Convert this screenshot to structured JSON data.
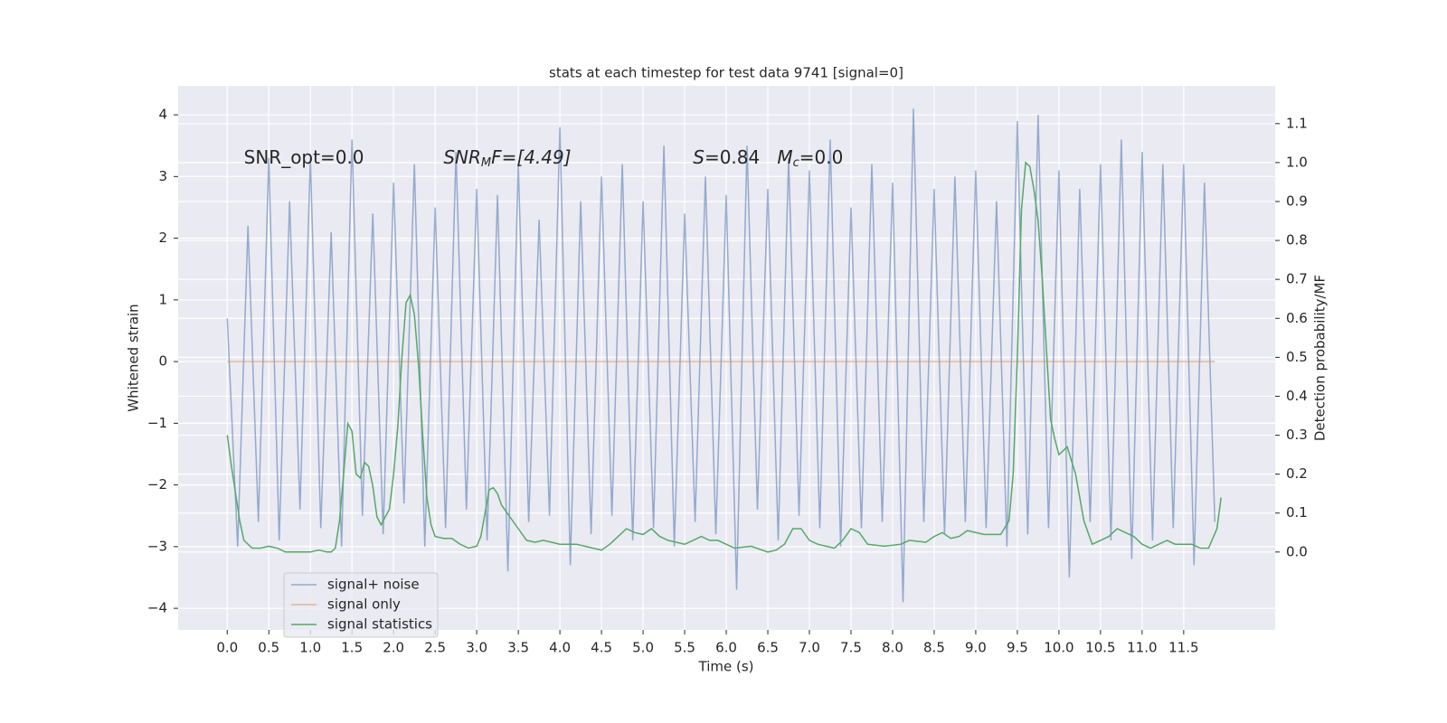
{
  "chart_data": {
    "type": "line",
    "title": "stats at each timestep for test data 9741 [signal=0]",
    "xlabel": "Time (s)",
    "ylabel": "Whitened strain",
    "y2label": "Detection probability/MF",
    "annotations": [
      {
        "x": 0.2,
        "y": 3.3,
        "parts": [
          "SNR_opt=0.0"
        ]
      },
      {
        "x": 2.6,
        "y": 3.3,
        "parts": [
          "SNR",
          "M",
          "F=[4.49]"
        ]
      },
      {
        "x": 5.6,
        "y": 3.3,
        "parts": [
          "S",
          "=0.84   ",
          "M",
          "c",
          "=0.0"
        ]
      }
    ],
    "xlim": [
      -0.59,
      12.6
    ],
    "ylim": [
      -4.35,
      4.47
    ],
    "y2lim": [
      -0.2,
      1.197
    ],
    "xticks": [
      {
        "value": 0,
        "label": "0.0"
      },
      {
        "value": 0.5,
        "label": "0.5"
      },
      {
        "value": 1,
        "label": "1.0"
      },
      {
        "value": 1.5,
        "label": "1.5"
      },
      {
        "value": 2,
        "label": "2.0"
      },
      {
        "value": 2.5,
        "label": "2.5"
      },
      {
        "value": 3,
        "label": "3.0"
      },
      {
        "value": 3.5,
        "label": "3.5"
      },
      {
        "value": 4,
        "label": "4.0"
      },
      {
        "value": 4.5,
        "label": "4.5"
      },
      {
        "value": 5,
        "label": "5.0"
      },
      {
        "value": 5.5,
        "label": "5.5"
      },
      {
        "value": 6,
        "label": "6.0"
      },
      {
        "value": 6.5,
        "label": "6.5"
      },
      {
        "value": 7,
        "label": "7.0"
      },
      {
        "value": 7.5,
        "label": "7.5"
      },
      {
        "value": 8,
        "label": "8.0"
      },
      {
        "value": 8.5,
        "label": "8.5"
      },
      {
        "value": 9,
        "label": "9.0"
      },
      {
        "value": 9.5,
        "label": "9.5"
      },
      {
        "value": 10,
        "label": "10.0"
      },
      {
        "value": 10.5,
        "label": "10.5"
      },
      {
        "value": 11,
        "label": "11.0"
      },
      {
        "value": 11.5,
        "label": "11.5"
      }
    ],
    "yticks": [
      {
        "value": -4,
        "label": "−4"
      },
      {
        "value": -3,
        "label": "−3"
      },
      {
        "value": -2,
        "label": "−2"
      },
      {
        "value": -1,
        "label": "−1"
      },
      0,
      1,
      2,
      3,
      4
    ],
    "y2ticks": [
      {
        "value": 0,
        "label": "0.0"
      },
      {
        "value": 0.1,
        "label": "0.1"
      },
      {
        "value": 0.2,
        "label": "0.2"
      },
      {
        "value": 0.3,
        "label": "0.3"
      },
      {
        "value": 0.4,
        "label": "0.4"
      },
      {
        "value": 0.5,
        "label": "0.5"
      },
      {
        "value": 0.6,
        "label": "0.6"
      },
      {
        "value": 0.7,
        "label": "0.7"
      },
      {
        "value": 0.8,
        "label": "0.8"
      },
      {
        "value": 0.9,
        "label": "0.9"
      },
      {
        "value": 1,
        "label": "1.0"
      },
      {
        "value": 1.1,
        "label": "1.1"
      }
    ],
    "grid": true,
    "legend": "lower left",
    "x": [
      0,
      0.125,
      0.25,
      0.375,
      0.5,
      0.625,
      0.75,
      0.875,
      1,
      1.125,
      1.25,
      1.375,
      1.5,
      1.625,
      1.75,
      1.875,
      2,
      2.125,
      2.25,
      2.375,
      2.5,
      2.625,
      2.75,
      2.875,
      3,
      3.125,
      3.25,
      3.375,
      3.5,
      3.625,
      3.75,
      3.875,
      4,
      4.125,
      4.25,
      4.375,
      4.5,
      4.625,
      4.75,
      4.875,
      5,
      5.125,
      5.25,
      5.375,
      5.5,
      5.625,
      5.75,
      5.875,
      6,
      6.125,
      6.25,
      6.375,
      6.5,
      6.625,
      6.75,
      6.875,
      7,
      7.125,
      7.25,
      7.375,
      7.5,
      7.625,
      7.75,
      7.875,
      8,
      8.125,
      8.25,
      8.375,
      8.5,
      8.625,
      8.75,
      8.875,
      9,
      9.125,
      9.25,
      9.375,
      9.5,
      9.625,
      9.75,
      9.875,
      10,
      10.125,
      10.25,
      10.375,
      10.5,
      10.625,
      10.75,
      10.875,
      11,
      11.125,
      11.25,
      11.375,
      11.5,
      11.625,
      11.75,
      11.875
    ],
    "series": [
      {
        "name": "signal+ noise",
        "color": "#4c72b0",
        "values": [
          0.7,
          -3.0,
          2.2,
          -2.6,
          3.3,
          -2.9,
          2.6,
          -2.4,
          3.3,
          -2.7,
          2.1,
          -3.0,
          3.6,
          -2.5,
          2.4,
          -2.8,
          2.9,
          -2.3,
          3.2,
          -3.0,
          2.5,
          -2.7,
          3.4,
          -2.4,
          2.8,
          -2.9,
          2.7,
          -3.4,
          3.2,
          -2.6,
          2.3,
          -2.5,
          3.8,
          -3.3,
          2.6,
          -2.8,
          3.0,
          -2.5,
          3.2,
          -2.9,
          2.6,
          -2.7,
          3.5,
          -3.0,
          2.4,
          -2.6,
          3.0,
          -2.8,
          2.7,
          -3.7,
          3.5,
          -2.4,
          2.8,
          -2.9,
          3.3,
          -2.5,
          3.1,
          -2.7,
          3.6,
          -3.0,
          2.5,
          -2.7,
          3.2,
          -2.6,
          2.9,
          -3.9,
          4.1,
          -2.6,
          2.8,
          -2.8,
          3.0,
          -2.6,
          3.1,
          -2.7,
          2.6,
          -3.0,
          3.9,
          -2.8,
          4.0,
          -2.7,
          3.1,
          -3.5,
          2.8,
          -2.6,
          3.2,
          -2.9,
          3.6,
          -3.2,
          3.4,
          -2.9,
          3.2,
          -2.7,
          3.2,
          -3.3,
          2.9,
          -2.6
        ]
      },
      {
        "name": "signal only",
        "color": "#dd8452",
        "values": [
          0,
          0,
          0,
          0,
          0,
          0,
          0,
          0,
          0,
          0,
          0,
          0,
          0,
          0,
          0,
          0,
          0,
          0,
          0,
          0,
          0,
          0,
          0,
          0,
          0,
          0,
          0,
          0,
          0,
          0,
          0,
          0,
          0,
          0,
          0,
          0,
          0,
          0,
          0,
          0,
          0,
          0,
          0,
          0,
          0,
          0,
          0,
          0,
          0,
          0,
          0,
          0,
          0,
          0,
          0,
          0,
          0,
          0,
          0,
          0,
          0,
          0,
          0,
          0,
          0,
          0,
          0,
          0,
          0,
          0,
          0,
          0,
          0,
          0,
          0,
          0,
          0,
          0,
          0,
          0,
          0,
          0,
          0,
          0,
          0,
          0,
          0,
          0,
          0,
          0,
          0,
          0,
          0,
          0,
          0,
          0
        ]
      },
      {
        "name": "signal statistics",
        "color": "#55a868",
        "axis": "y2",
        "x": [
          0,
          0.05,
          0.1,
          0.15,
          0.2,
          0.3,
          0.4,
          0.5,
          0.6,
          0.7,
          0.8,
          0.9,
          1,
          1.1,
          1.2,
          1.25,
          1.3,
          1.35,
          1.4,
          1.45,
          1.5,
          1.55,
          1.6,
          1.65,
          1.7,
          1.75,
          1.8,
          1.85,
          1.9,
          1.95,
          2,
          2.05,
          2.1,
          2.15,
          2.2,
          2.25,
          2.3,
          2.35,
          2.4,
          2.45,
          2.5,
          2.6,
          2.7,
          2.8,
          2.9,
          3,
          3.05,
          3.1,
          3.15,
          3.2,
          3.25,
          3.3,
          3.4,
          3.5,
          3.6,
          3.7,
          3.8,
          3.9,
          4,
          4.1,
          4.2,
          4.3,
          4.5,
          4.6,
          4.7,
          4.8,
          4.9,
          5,
          5.1,
          5.2,
          5.3,
          5.5,
          5.6,
          5.7,
          5.8,
          5.9,
          6,
          6.1,
          6.3,
          6.5,
          6.6,
          6.7,
          6.8,
          6.9,
          7,
          7.1,
          7.3,
          7.4,
          7.5,
          7.6,
          7.7,
          7.9,
          8.1,
          8.2,
          8.4,
          8.5,
          8.6,
          8.7,
          8.8,
          8.9,
          9.1,
          9.2,
          9.3,
          9.4,
          9.45,
          9.5,
          9.55,
          9.6,
          9.65,
          9.7,
          9.75,
          9.8,
          9.85,
          9.9,
          9.95,
          10,
          10.1,
          10.2,
          10.3,
          10.4,
          10.5,
          10.6,
          10.7,
          10.8,
          10.9,
          11,
          11.1,
          11.2,
          11.3,
          11.4,
          11.5,
          11.6,
          11.7,
          11.8,
          11.9,
          11.95
        ],
        "values": [
          0.3,
          0.22,
          0.15,
          0.08,
          0.03,
          0.01,
          0.01,
          0.015,
          0.01,
          0,
          0,
          0,
          0,
          0.005,
          0,
          0,
          0.01,
          0.08,
          0.2,
          0.33,
          0.31,
          0.2,
          0.19,
          0.23,
          0.22,
          0.17,
          0.09,
          0.07,
          0.09,
          0.11,
          0.2,
          0.32,
          0.5,
          0.64,
          0.66,
          0.61,
          0.48,
          0.3,
          0.14,
          0.07,
          0.04,
          0.035,
          0.035,
          0.02,
          0.01,
          0.015,
          0.04,
          0.1,
          0.16,
          0.165,
          0.15,
          0.12,
          0.09,
          0.06,
          0.03,
          0.025,
          0.03,
          0.025,
          0.02,
          0.02,
          0.02,
          0.015,
          0.005,
          0.02,
          0.04,
          0.06,
          0.05,
          0.045,
          0.06,
          0.04,
          0.03,
          0.02,
          0.03,
          0.04,
          0.03,
          0.03,
          0.02,
          0.01,
          0.015,
          0,
          0.005,
          0.02,
          0.06,
          0.06,
          0.03,
          0.02,
          0.01,
          0.03,
          0.06,
          0.05,
          0.02,
          0.015,
          0.02,
          0.03,
          0.025,
          0.04,
          0.05,
          0.035,
          0.04,
          0.055,
          0.045,
          0.045,
          0.045,
          0.08,
          0.2,
          0.5,
          0.88,
          1,
          0.99,
          0.93,
          0.85,
          0.7,
          0.52,
          0.34,
          0.29,
          0.25,
          0.27,
          0.2,
          0.08,
          0.02,
          0.03,
          0.04,
          0.06,
          0.05,
          0.04,
          0.02,
          0.01,
          0.02,
          0.03,
          0.02,
          0.02,
          0.02,
          0.01,
          0.01,
          0.06,
          0.14
        ]
      }
    ]
  }
}
